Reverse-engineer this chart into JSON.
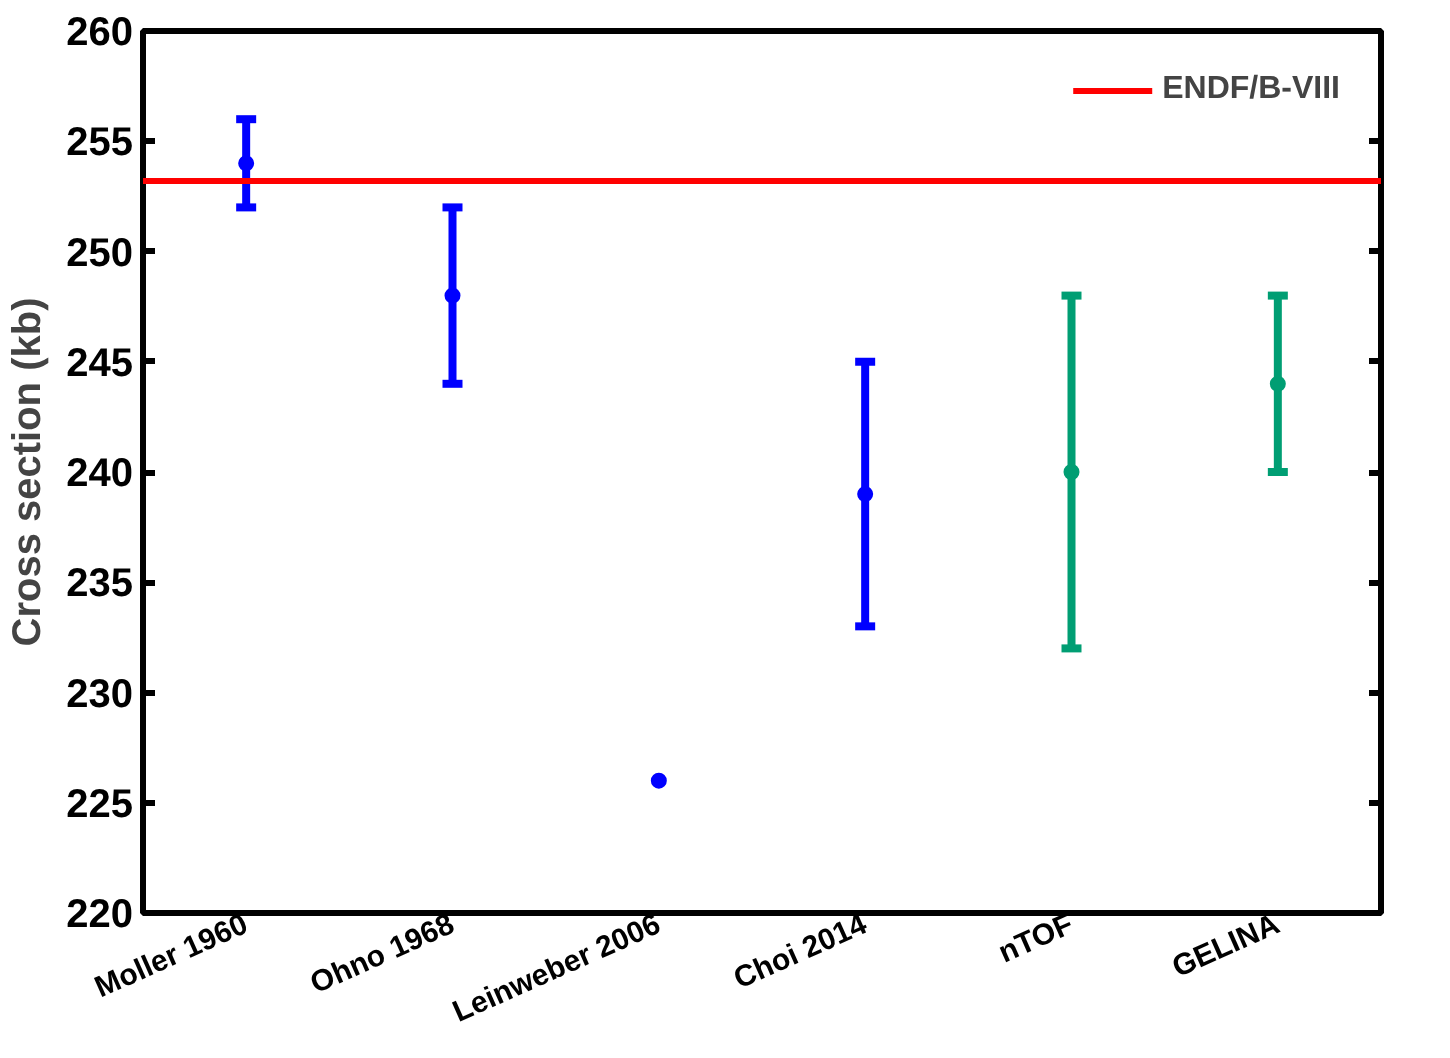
{
  "chart_data": {
    "type": "scatter",
    "ylabel": "Cross section (kb)",
    "categories": [
      "Moller 1960",
      "Ohno 1968",
      "Leinweber 2006",
      "Choi 2014",
      "nTOF",
      "GELINA"
    ],
    "series": [
      {
        "color": "#0000ff",
        "values": [
          254,
          248,
          226,
          239,
          null,
          null
        ],
        "errors": [
          2,
          4,
          null,
          6,
          null,
          null
        ]
      },
      {
        "color": "#009e73",
        "values": [
          null,
          null,
          null,
          null,
          240,
          244
        ],
        "errors": [
          null,
          null,
          null,
          null,
          8,
          4
        ]
      }
    ],
    "ylim": [
      220,
      260
    ],
    "yticks": [
      220,
      225,
      230,
      235,
      240,
      245,
      250,
      255,
      260
    ],
    "ref_lines": [
      {
        "axis": "y",
        "value": 253.2,
        "label": "ENDF/B-VIII",
        "color": "#ff0000"
      }
    ],
    "legend": "top right",
    "marker": "circle",
    "grid": false
  }
}
